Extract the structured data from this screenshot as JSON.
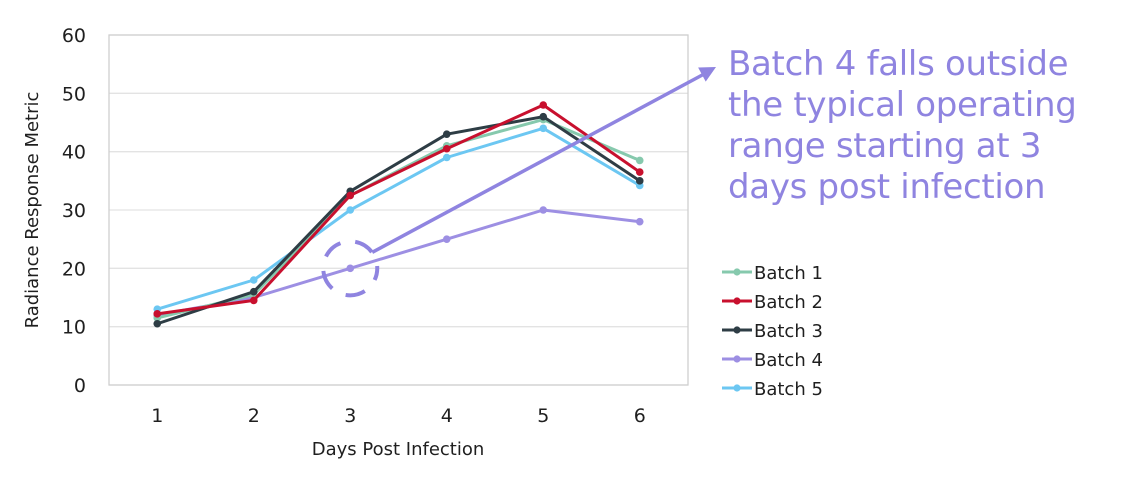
{
  "chart_data": {
    "type": "line",
    "title": "",
    "xlabel": "Days Post Infection",
    "ylabel": "Radiance Response Metric",
    "x": [
      1,
      2,
      3,
      4,
      5,
      6
    ],
    "x_tick_labels": [
      "1",
      "2",
      "3",
      "4",
      "5",
      "6"
    ],
    "ylim": [
      0,
      60
    ],
    "y_ticks": [
      0,
      10,
      20,
      30,
      40,
      50,
      60
    ],
    "y_tick_labels": [
      "0",
      "10",
      "20",
      "30",
      "40",
      "50",
      "60"
    ],
    "grid": true,
    "legend_position": "right",
    "series": [
      {
        "name": "Batch 1",
        "color": "#86c9ad",
        "values": [
          11.5,
          15.5,
          32.5,
          41,
          45.5,
          38.5
        ]
      },
      {
        "name": "Batch 2",
        "color": "#c8102e",
        "values": [
          12.2,
          14.5,
          32.5,
          40.5,
          48,
          36.5
        ]
      },
      {
        "name": "Batch 3",
        "color": "#2e3d45",
        "values": [
          10.5,
          16,
          33.2,
          43,
          46,
          35
        ]
      },
      {
        "name": "Batch 4",
        "color": "#9d8fe3",
        "values": [
          12,
          15,
          20,
          25,
          30,
          28
        ]
      },
      {
        "name": "Batch 5",
        "color": "#6cc7f2",
        "values": [
          13,
          18,
          30,
          39,
          44,
          34.2
        ]
      }
    ],
    "annotation": {
      "lines": [
        "Batch 4 falls outside",
        "the typical operating",
        "range starting at 3",
        "days post infection"
      ],
      "color": "#8f84e0",
      "highlight_point": {
        "series": "Batch 4",
        "x": 3,
        "y": 20
      }
    }
  }
}
